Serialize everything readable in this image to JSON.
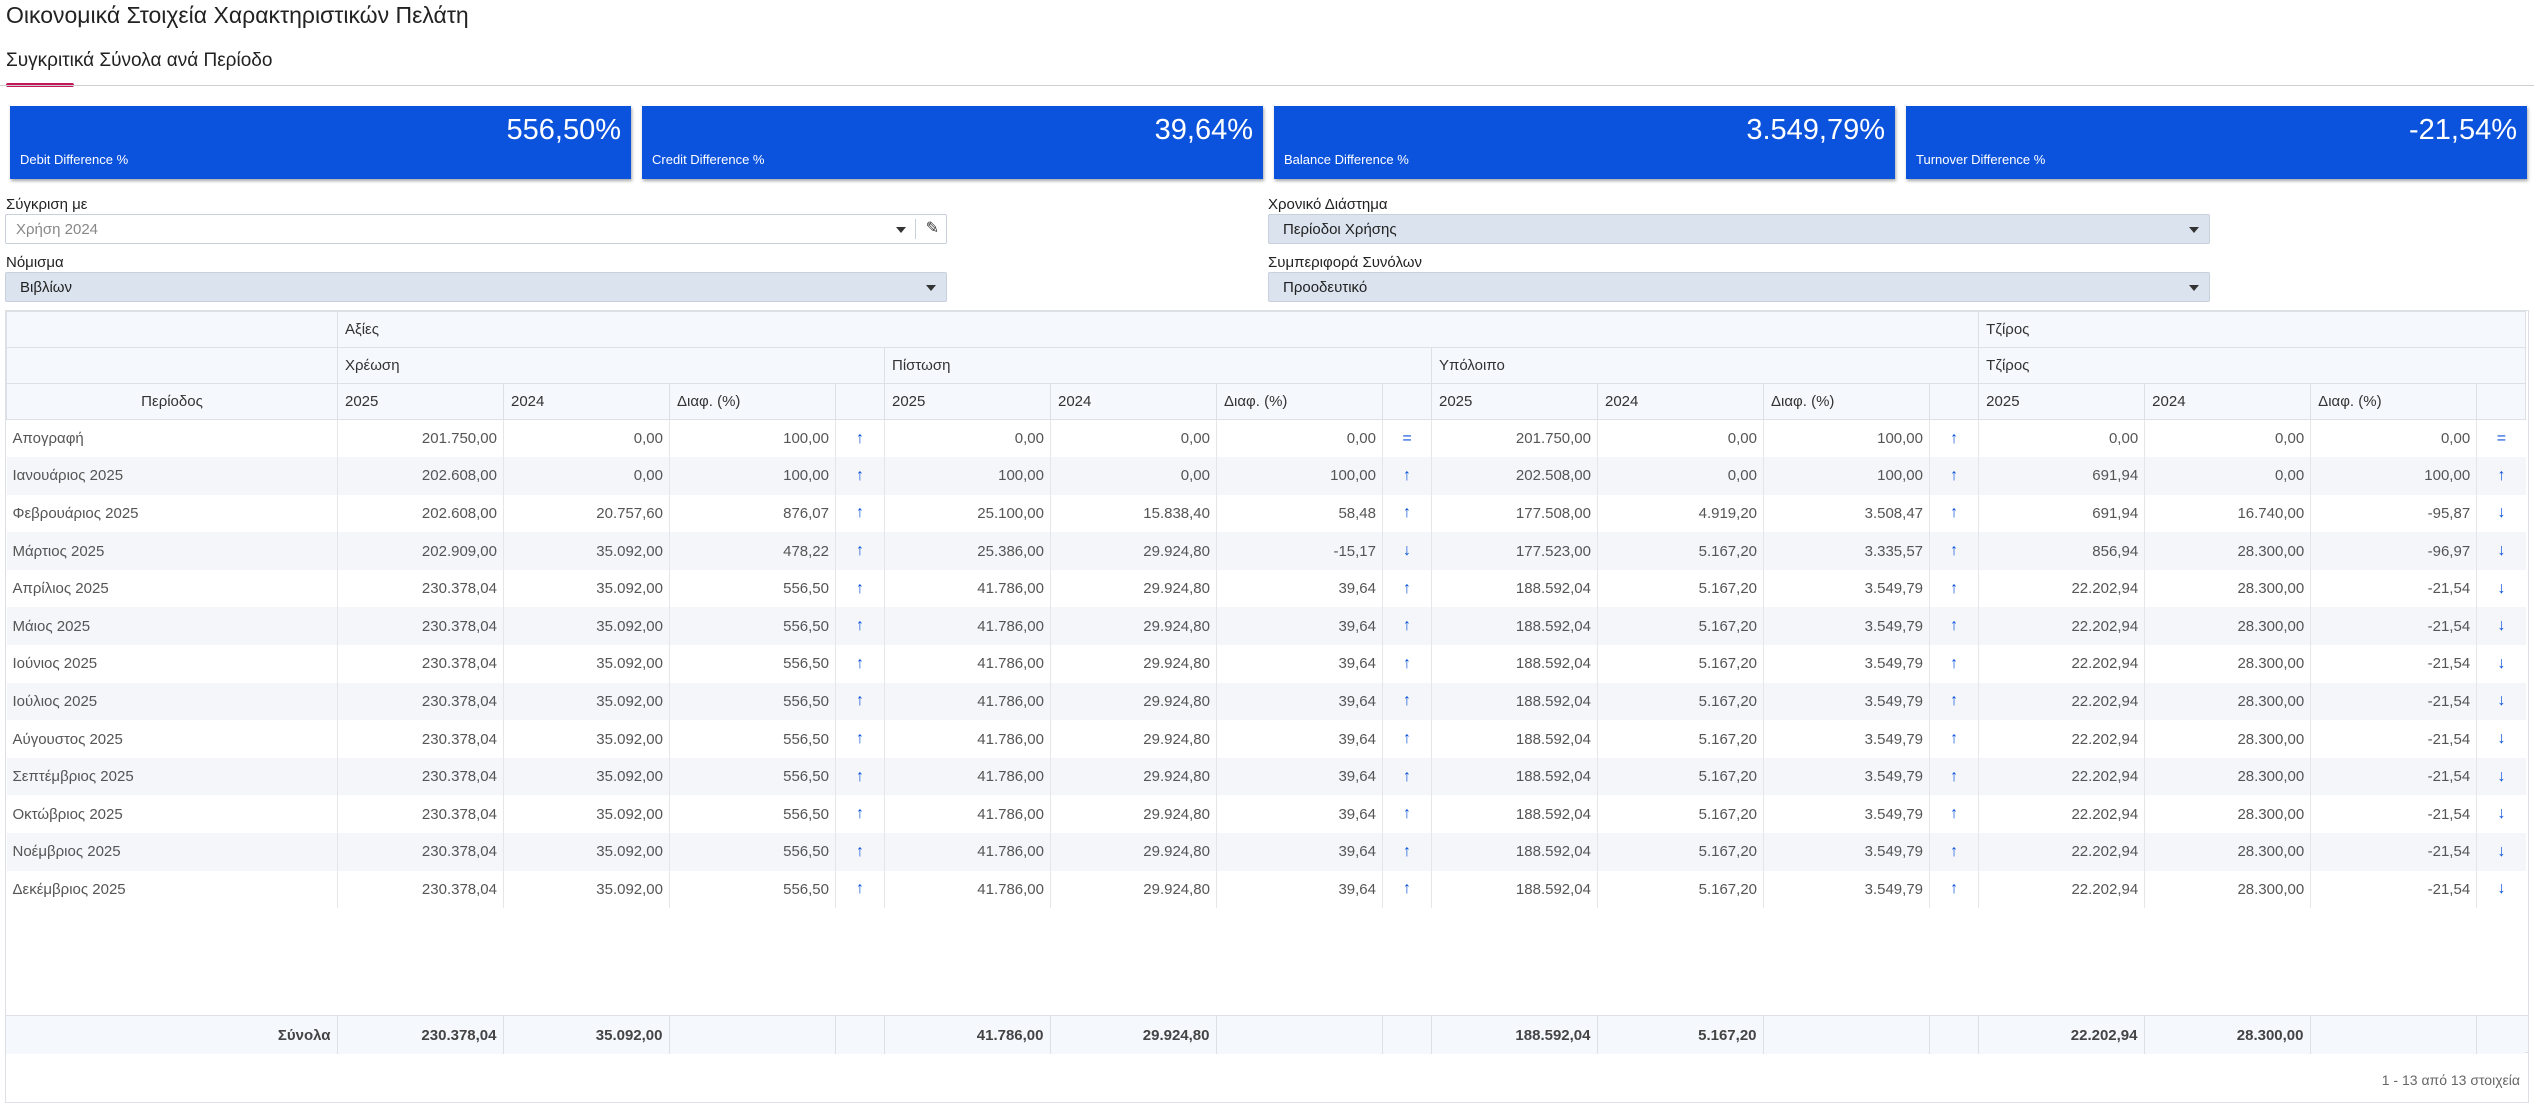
{
  "page": {
    "title": "Οικονομικά Στοιχεία Χαρακτηριστικών Πελάτη"
  },
  "tab": {
    "label": "Συγκριτικά Σύνολα ανά Περίοδο"
  },
  "kpis": [
    {
      "value": "556,50%",
      "label": "Debit Difference %"
    },
    {
      "value": "39,64%",
      "label": "Credit Difference %"
    },
    {
      "value": "3.549,79%",
      "label": "Balance Difference %"
    },
    {
      "value": "-21,54%",
      "label": "Turnover Difference %"
    }
  ],
  "filters": {
    "compare_label": "Σύγκριση με",
    "compare_placeholder": "Χρήση 2024",
    "currency_label": "Νόμισμα",
    "currency_value": "Βιβλίων",
    "period_label": "Χρονικό Διάστημα",
    "period_value": "Περίοδοι Χρήσης",
    "behavior_label": "Συμπεριφορά Συνόλων",
    "behavior_value": "Προοδευτικό"
  },
  "table": {
    "group_values": "Αξίες",
    "group_turnover": "Τζίρος",
    "sub_debit": "Χρέωση",
    "sub_credit": "Πίστωση",
    "sub_balance": "Υπόλοιπο",
    "sub_turnover": "Τζίρος",
    "col_period": "Περίοδος",
    "col_y1": "2025",
    "col_y2": "2024",
    "col_diff": "Διαφ. (%)",
    "rows": [
      [
        "Απογραφή",
        "201.750,00",
        "0,00",
        "100,00",
        "↑",
        "0,00",
        "0,00",
        "0,00",
        "=",
        "201.750,00",
        "0,00",
        "100,00",
        "↑",
        "0,00",
        "0,00",
        "0,00",
        "="
      ],
      [
        "Ιανουάριος 2025",
        "202.608,00",
        "0,00",
        "100,00",
        "↑",
        "100,00",
        "0,00",
        "100,00",
        "↑",
        "202.508,00",
        "0,00",
        "100,00",
        "↑",
        "691,94",
        "0,00",
        "100,00",
        "↑"
      ],
      [
        "Φεβρουάριος 2025",
        "202.608,00",
        "20.757,60",
        "876,07",
        "↑",
        "25.100,00",
        "15.838,40",
        "58,48",
        "↑",
        "177.508,00",
        "4.919,20",
        "3.508,47",
        "↑",
        "691,94",
        "16.740,00",
        "-95,87",
        "↓"
      ],
      [
        "Μάρτιος 2025",
        "202.909,00",
        "35.092,00",
        "478,22",
        "↑",
        "25.386,00",
        "29.924,80",
        "-15,17",
        "↓",
        "177.523,00",
        "5.167,20",
        "3.335,57",
        "↑",
        "856,94",
        "28.300,00",
        "-96,97",
        "↓"
      ],
      [
        "Απρίλιος 2025",
        "230.378,04",
        "35.092,00",
        "556,50",
        "↑",
        "41.786,00",
        "29.924,80",
        "39,64",
        "↑",
        "188.592,04",
        "5.167,20",
        "3.549,79",
        "↑",
        "22.202,94",
        "28.300,00",
        "-21,54",
        "↓"
      ],
      [
        "Μάιος 2025",
        "230.378,04",
        "35.092,00",
        "556,50",
        "↑",
        "41.786,00",
        "29.924,80",
        "39,64",
        "↑",
        "188.592,04",
        "5.167,20",
        "3.549,79",
        "↑",
        "22.202,94",
        "28.300,00",
        "-21,54",
        "↓"
      ],
      [
        "Ιούνιος 2025",
        "230.378,04",
        "35.092,00",
        "556,50",
        "↑",
        "41.786,00",
        "29.924,80",
        "39,64",
        "↑",
        "188.592,04",
        "5.167,20",
        "3.549,79",
        "↑",
        "22.202,94",
        "28.300,00",
        "-21,54",
        "↓"
      ],
      [
        "Ιούλιος 2025",
        "230.378,04",
        "35.092,00",
        "556,50",
        "↑",
        "41.786,00",
        "29.924,80",
        "39,64",
        "↑",
        "188.592,04",
        "5.167,20",
        "3.549,79",
        "↑",
        "22.202,94",
        "28.300,00",
        "-21,54",
        "↓"
      ],
      [
        "Αύγουστος 2025",
        "230.378,04",
        "35.092,00",
        "556,50",
        "↑",
        "41.786,00",
        "29.924,80",
        "39,64",
        "↑",
        "188.592,04",
        "5.167,20",
        "3.549,79",
        "↑",
        "22.202,94",
        "28.300,00",
        "-21,54",
        "↓"
      ],
      [
        "Σεπτέμβριος 2025",
        "230.378,04",
        "35.092,00",
        "556,50",
        "↑",
        "41.786,00",
        "29.924,80",
        "39,64",
        "↑",
        "188.592,04",
        "5.167,20",
        "3.549,79",
        "↑",
        "22.202,94",
        "28.300,00",
        "-21,54",
        "↓"
      ],
      [
        "Οκτώβριος 2025",
        "230.378,04",
        "35.092,00",
        "556,50",
        "↑",
        "41.786,00",
        "29.924,80",
        "39,64",
        "↑",
        "188.592,04",
        "5.167,20",
        "3.549,79",
        "↑",
        "22.202,94",
        "28.300,00",
        "-21,54",
        "↓"
      ],
      [
        "Νοέμβριος 2025",
        "230.378,04",
        "35.092,00",
        "556,50",
        "↑",
        "41.786,00",
        "29.924,80",
        "39,64",
        "↑",
        "188.592,04",
        "5.167,20",
        "3.549,79",
        "↑",
        "22.202,94",
        "28.300,00",
        "-21,54",
        "↓"
      ],
      [
        "Δεκέμβριος 2025",
        "230.378,04",
        "35.092,00",
        "556,50",
        "↑",
        "41.786,00",
        "29.924,80",
        "39,64",
        "↑",
        "188.592,04",
        "5.167,20",
        "3.549,79",
        "↑",
        "22.202,94",
        "28.300,00",
        "-21,54",
        "↓"
      ]
    ],
    "totals": [
      "Σύνολα",
      "230.378,04",
      "35.092,00",
      "",
      "",
      "41.786,00",
      "29.924,80",
      "",
      "",
      "188.592,04",
      "5.167,20",
      "",
      "",
      "22.202,94",
      "28.300,00",
      "",
      ""
    ]
  },
  "pager": {
    "text": "1 - 13 από 13 στοιχεία"
  }
}
